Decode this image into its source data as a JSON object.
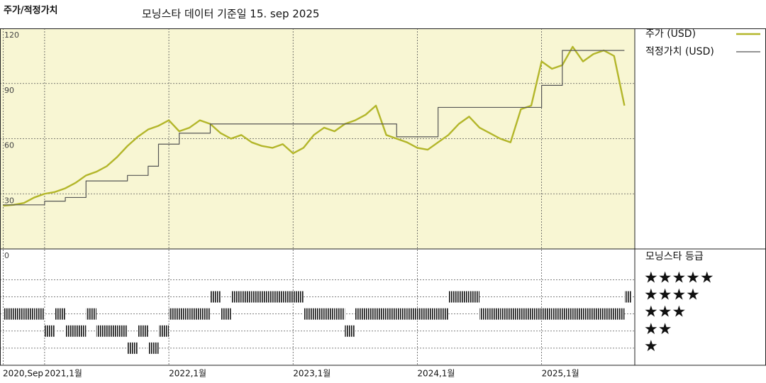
{
  "header": {
    "title_left": "주가/적정가치",
    "title": "모닝스타 데이터 기준일 15. sep 2025"
  },
  "chart_data": [
    {
      "type": "line",
      "x": [
        "2020-09",
        "2020-10",
        "2020-11",
        "2020-12",
        "2021-01",
        "2021-02",
        "2021-03",
        "2021-04",
        "2021-05",
        "2021-06",
        "2021-07",
        "2021-08",
        "2021-09",
        "2021-10",
        "2021-11",
        "2021-12",
        "2022-01",
        "2022-02",
        "2022-03",
        "2022-04",
        "2022-05",
        "2022-06",
        "2022-07",
        "2022-08",
        "2022-09",
        "2022-10",
        "2022-11",
        "2022-12",
        "2023-01",
        "2023-02",
        "2023-03",
        "2023-04",
        "2023-05",
        "2023-06",
        "2023-07",
        "2023-08",
        "2023-09",
        "2023-10",
        "2023-11",
        "2023-12",
        "2024-01",
        "2024-02",
        "2024-03",
        "2024-04",
        "2024-05",
        "2024-06",
        "2024-07",
        "2024-08",
        "2024-09",
        "2024-10",
        "2024-11",
        "2024-12",
        "2025-01",
        "2025-02",
        "2025-03",
        "2025-04",
        "2025-05",
        "2025-06",
        "2025-07",
        "2025-08",
        "2025-09"
      ],
      "series": [
        {
          "name": "주가 (USD)",
          "color": "#b3b62a",
          "values": [
            23.5,
            24,
            25,
            28,
            30,
            31,
            33,
            36,
            40,
            42,
            45,
            50,
            56,
            61,
            65,
            67,
            70,
            64,
            66,
            70,
            68,
            63,
            60,
            62,
            58,
            56,
            55,
            57,
            52,
            55,
            62,
            66,
            64,
            68,
            70,
            73,
            78,
            62,
            60,
            58,
            55,
            54,
            58,
            62,
            68,
            72,
            66,
            63,
            60,
            58,
            76,
            78,
            102,
            98,
            100,
            110,
            102,
            106,
            108,
            105,
            78
          ]
        },
        {
          "name": "적정가치 (USD)",
          "color": "#555555",
          "step": true,
          "values": [
            24,
            24,
            24,
            24,
            26,
            26,
            28,
            28,
            37,
            37,
            37,
            37,
            40,
            40,
            45,
            57,
            57,
            63,
            63,
            63,
            68,
            68,
            68,
            68,
            68,
            68,
            68,
            68,
            68,
            68,
            68,
            68,
            68,
            68,
            68,
            68,
            68,
            68,
            61,
            61,
            61,
            61,
            77,
            77,
            77,
            77,
            77,
            77,
            77,
            77,
            77,
            77,
            89,
            89,
            108,
            108,
            108,
            108,
            108,
            108,
            108
          ]
        }
      ],
      "xlim": [
        "2020-09",
        "2025-10"
      ],
      "xticks": [
        {
          "value": "2020-09",
          "label": "2020,Sep"
        },
        {
          "value": "2021-01",
          "label": "2021,1월"
        },
        {
          "value": "2022-01",
          "label": "2022,1월"
        },
        {
          "value": "2023-01",
          "label": "2023,1월"
        },
        {
          "value": "2024-01",
          "label": "2024,1월"
        },
        {
          "value": "2025-01",
          "label": "2025,1월"
        }
      ],
      "ylim": [
        0,
        120
      ],
      "yticks": [
        0,
        30,
        60,
        90,
        120
      ],
      "grid": true,
      "background": "#f8f6d3"
    },
    {
      "type": "rating",
      "title": "모닝스타 등급",
      "color": "#111111",
      "values": [
        3,
        3,
        3,
        3,
        2,
        3,
        2,
        2,
        3,
        2,
        2,
        2,
        1,
        2,
        1,
        2,
        3,
        3,
        3,
        3,
        4,
        3,
        4,
        4,
        4,
        4,
        4,
        4,
        4,
        3,
        3,
        3,
        3,
        2,
        3,
        3,
        3,
        3,
        3,
        3,
        3,
        3,
        3,
        4,
        4,
        4,
        3,
        3,
        3,
        3,
        3,
        3,
        3,
        3,
        3,
        3,
        3,
        3,
        3,
        3,
        4
      ],
      "ylim": [
        0,
        6.8
      ],
      "levels": [
        {
          "value": 5,
          "label": "★★★★★"
        },
        {
          "value": 4,
          "label": "★★★★"
        },
        {
          "value": 3,
          "label": "★★★"
        },
        {
          "value": 2,
          "label": "★★"
        },
        {
          "value": 1,
          "label": "★"
        }
      ]
    }
  ]
}
